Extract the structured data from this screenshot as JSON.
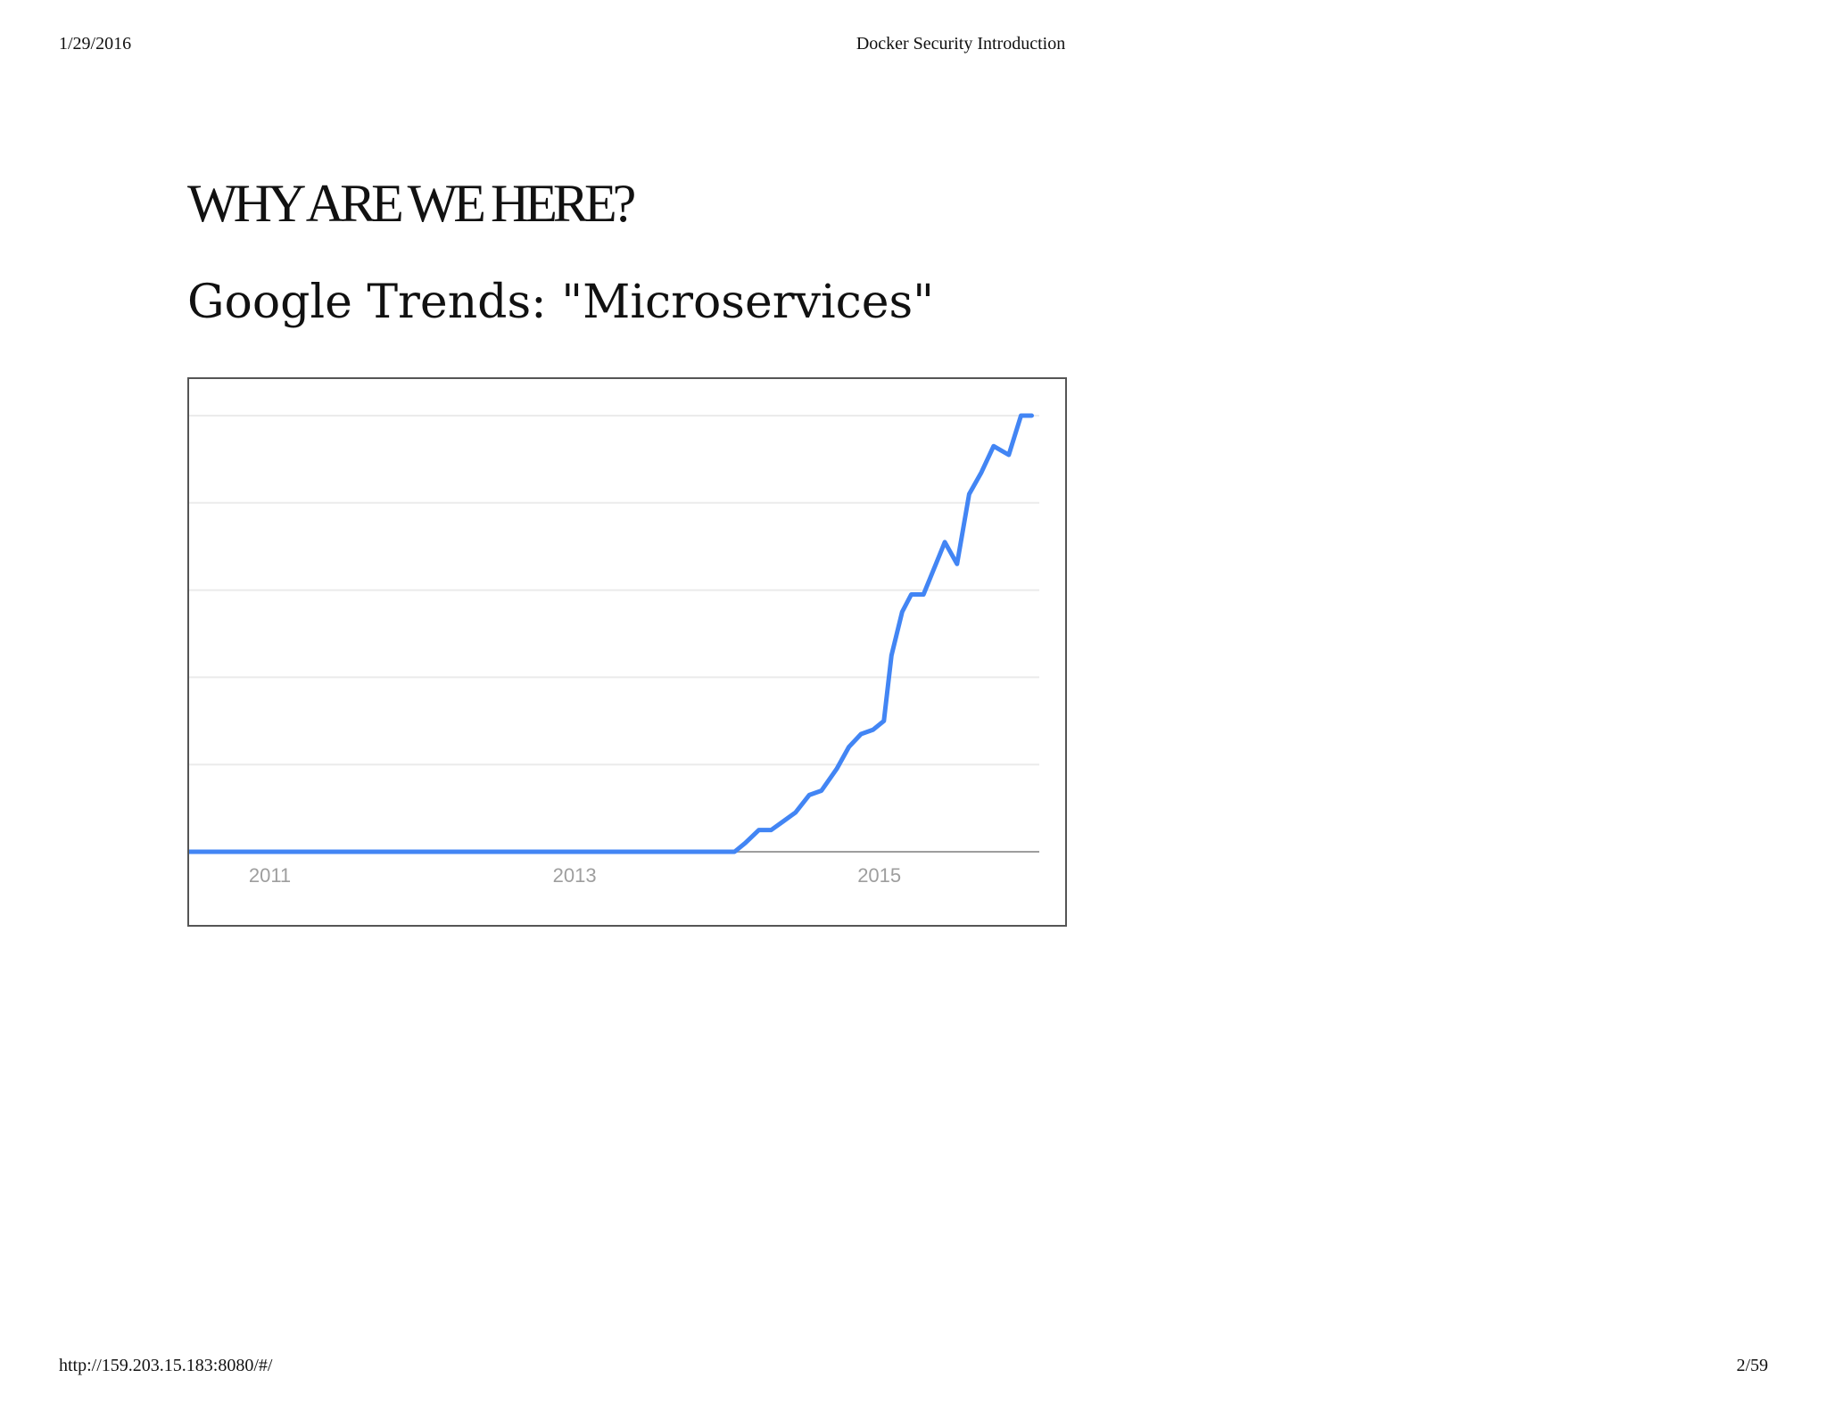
{
  "print_header": {
    "date": "1/29/2016",
    "title": "Docker Security Introduction"
  },
  "print_footer": {
    "url": "http://159.203.15.183:8080/#/",
    "page": "2/59"
  },
  "slide": {
    "title": "WHY ARE WE HERE?",
    "subtitle": "Google Trends: \"Microservices\""
  },
  "colors": {
    "line": "#4285f4",
    "gridline": "#ebebeb",
    "baseline": "#9e9e9e",
    "tick_text": "#9e9e9e"
  },
  "chart_data": {
    "type": "line",
    "title": "",
    "xlabel": "",
    "ylabel": "",
    "x_ticks": [
      "2011",
      "2013",
      "2015"
    ],
    "xlim": [
      2010.47,
      2016.05
    ],
    "ylim": [
      0,
      100
    ],
    "grid": true,
    "y_gridlines": [
      20,
      40,
      60,
      80,
      100
    ],
    "series": [
      {
        "x": [
          2010.47,
          2014.05,
          2014.12,
          2014.21,
          2014.29,
          2014.37,
          2014.45,
          2014.54,
          2014.62,
          2014.72,
          2014.8,
          2014.88,
          2014.96,
          2015.03,
          2015.08,
          2015.15,
          2015.21,
          2015.29,
          2015.36,
          2015.43,
          2015.51,
          2015.59,
          2015.67,
          2015.75,
          2015.85,
          2015.93,
          2016.0
        ],
        "y": [
          0,
          0,
          2,
          5,
          5,
          7,
          9,
          13,
          14,
          19,
          24,
          27,
          28,
          30,
          45,
          55,
          59,
          59,
          65,
          71,
          66,
          82,
          87,
          93,
          91,
          100,
          100
        ]
      }
    ]
  }
}
